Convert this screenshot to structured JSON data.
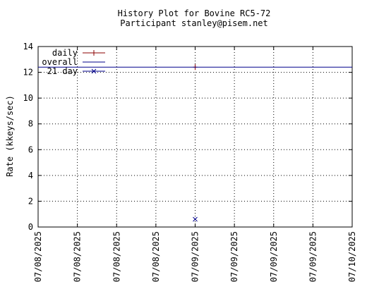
{
  "chart_data": {
    "type": "line",
    "title": "History Plot for Bovine RC5-72",
    "subtitle": "Participant stanley@pisem.net",
    "xlabel": "",
    "ylabel": "Rate (kkeys/sec)",
    "x_ticks": [
      "07/08/2025",
      "07/08/2025",
      "07/08/2025",
      "07/08/2025",
      "07/09/2025",
      "07/09/2025",
      "07/09/2025",
      "07/09/2025",
      "07/10/2025"
    ],
    "y_ticks": [
      0,
      2,
      4,
      6,
      8,
      10,
      12,
      14
    ],
    "ylim": [
      0,
      14
    ],
    "x_range_days": [
      0,
      2
    ],
    "grid": true,
    "legend_position": "top-left",
    "series": [
      {
        "name": "daily",
        "color": "#8b0000",
        "marker": "plus",
        "points": [
          {
            "x_day": 1.0,
            "y": 12.4
          }
        ]
      },
      {
        "name": "overall",
        "color": "#00008b",
        "marker": "none",
        "line_y": 12.4
      },
      {
        "name": "21 day",
        "color": "#00008b",
        "marker": "cross",
        "points": [
          {
            "x_day": 1.0,
            "y": 0.6
          }
        ]
      }
    ]
  }
}
